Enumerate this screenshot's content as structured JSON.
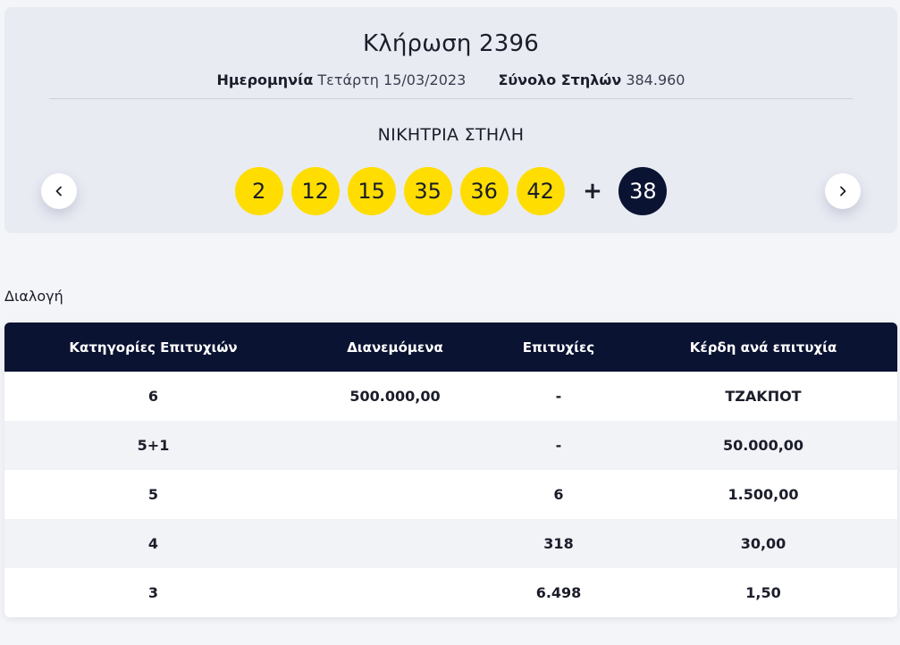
{
  "draw": {
    "title": "Κλήρωση 2396",
    "date_label": "Ημερομηνία",
    "date_value": "Τετάρτη 15/03/2023",
    "total_label": "Σύνολο Στηλών",
    "total_value": "384.960",
    "winning_title": "ΝΙΚΗΤΡΙΑ ΣΤΗΛΗ",
    "numbers": [
      "2",
      "12",
      "15",
      "35",
      "36",
      "42"
    ],
    "plus": "+",
    "bonus": "38",
    "colors": {
      "ball": "#ffdd00",
      "bonus_ball": "#0b1333"
    }
  },
  "nav": {
    "prev_icon": "chevron-left-icon",
    "next_icon": "chevron-right-icon"
  },
  "section": {
    "label": "Διαλογή"
  },
  "table": {
    "headers": [
      "Κατηγορίες Επιτυχιών",
      "Διανεμόμενα",
      "Επιτυχίες",
      "Κέρδη ανά επιτυχία"
    ],
    "rows": [
      [
        "6",
        "500.000,00",
        "-",
        "ΤΖΑΚΠΟΤ"
      ],
      [
        "5+1",
        "",
        "-",
        "50.000,00"
      ],
      [
        "5",
        "",
        "6",
        "1.500,00"
      ],
      [
        "4",
        "",
        "318",
        "30,00"
      ],
      [
        "3",
        "",
        "6.498",
        "1,50"
      ]
    ],
    "header_color": "#0b1333"
  }
}
